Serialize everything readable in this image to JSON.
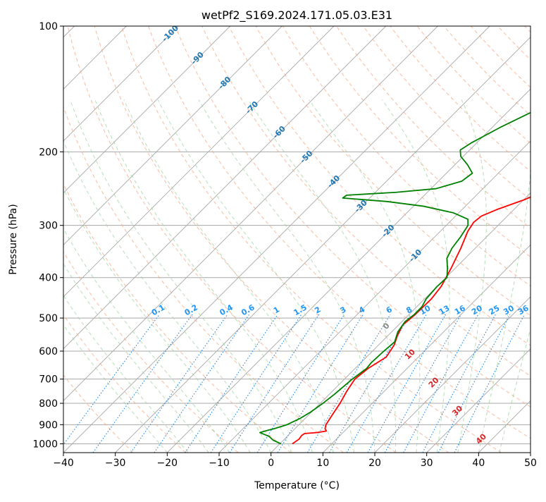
{
  "chart_data": {
    "type": "line",
    "subtype": "skew-t log-p diagram",
    "title": "wetPf2_S169.2024.171.05.03.E31",
    "xlabel": "Temperature (°C)",
    "ylabel": "Pressure (hPa)",
    "xlim": [
      -40,
      50
    ],
    "ylim": [
      1050,
      100
    ],
    "y_scale": "log",
    "x_ticks": [
      -40,
      -30,
      -20,
      -10,
      0,
      10,
      20,
      30,
      40,
      50
    ],
    "y_ticks": [
      1000,
      900,
      800,
      700,
      600,
      500,
      400,
      300,
      200,
      100
    ],
    "grid": true,
    "colors": {
      "temperature": "#ff0000",
      "dewpoint": "#008000",
      "isotherm": "#a8a8a8",
      "dry_adiabat": "#f4a582",
      "moist_adiabat": "#98d098",
      "mixing_ratio": "#1e88e5",
      "mixing_ratio_label": "#2196f3",
      "upper_isotherm_label": "#1f77b4",
      "lower_isotherm_label": "#d62728",
      "zero_label": "#888888"
    },
    "series": [
      {
        "role": "temperature",
        "points": [
          {
            "p": 1000,
            "t": 2.4
          },
          {
            "p": 975,
            "t": 2.8
          },
          {
            "p": 955,
            "t": 2.6
          },
          {
            "p": 945,
            "t": 2.8
          },
          {
            "p": 940,
            "t": 5.0
          },
          {
            "p": 932,
            "t": 6.5
          },
          {
            "p": 920,
            "t": 5.8
          },
          {
            "p": 900,
            "t": 5.2
          },
          {
            "p": 850,
            "t": 4.5
          },
          {
            "p": 800,
            "t": 3.8
          },
          {
            "p": 750,
            "t": 2.8
          },
          {
            "p": 700,
            "t": 2.0
          },
          {
            "p": 660,
            "t": 2.5
          },
          {
            "p": 620,
            "t": 3.8
          },
          {
            "p": 580,
            "t": 3.0
          },
          {
            "p": 550,
            "t": 1.8
          },
          {
            "p": 520,
            "t": 0.8
          },
          {
            "p": 490,
            "t": 1.2
          },
          {
            "p": 450,
            "t": 1.3
          },
          {
            "p": 420,
            "t": 0.8
          },
          {
            "p": 380,
            "t": -0.8
          },
          {
            "p": 340,
            "t": -2.8
          },
          {
            "p": 310,
            "t": -4.7
          },
          {
            "p": 295,
            "t": -5.3
          },
          {
            "p": 285,
            "t": -5.0
          },
          {
            "p": 275,
            "t": -3.3
          },
          {
            "p": 260,
            "t": 0.2
          },
          {
            "p": 240,
            "t": 3.8
          },
          {
            "p": 220,
            "t": 6.3
          },
          {
            "p": 200,
            "t": 8.0
          },
          {
            "p": 180,
            "t": 9.8
          },
          {
            "p": 160,
            "t": 11.5
          },
          {
            "p": 150,
            "t": 12.6
          },
          {
            "p": 140,
            "t": 14.2
          },
          {
            "p": 130,
            "t": 16.0
          },
          {
            "p": 120,
            "t": 18.6
          },
          {
            "p": 110,
            "t": 21.3
          },
          {
            "p": 100,
            "t": 24.3
          }
        ]
      },
      {
        "role": "dewpoint",
        "points": [
          {
            "p": 1000,
            "t": 0.2
          },
          {
            "p": 980,
            "t": -2.0
          },
          {
            "p": 960,
            "t": -3.5
          },
          {
            "p": 940,
            "t": -6.0
          },
          {
            "p": 932,
            "t": -5.3
          },
          {
            "p": 920,
            "t": -4.0
          },
          {
            "p": 900,
            "t": -2.3
          },
          {
            "p": 870,
            "t": -1.0
          },
          {
            "p": 840,
            "t": -0.2
          },
          {
            "p": 800,
            "t": 0.5
          },
          {
            "p": 760,
            "t": 1.0
          },
          {
            "p": 700,
            "t": 1.5
          },
          {
            "p": 660,
            "t": 2.2
          },
          {
            "p": 640,
            "t": 2.0
          },
          {
            "p": 600,
            "t": 2.2
          },
          {
            "p": 570,
            "t": 2.5
          },
          {
            "p": 540,
            "t": 1.2
          },
          {
            "p": 510,
            "t": 0.6
          },
          {
            "p": 490,
            "t": 1.0
          },
          {
            "p": 470,
            "t": 1.0
          },
          {
            "p": 450,
            "t": 0.3
          },
          {
            "p": 420,
            "t": 0.0
          },
          {
            "p": 400,
            "t": 0.2
          },
          {
            "p": 380,
            "t": -1.5
          },
          {
            "p": 360,
            "t": -3.5
          },
          {
            "p": 340,
            "t": -4.5
          },
          {
            "p": 320,
            "t": -5.0
          },
          {
            "p": 300,
            "t": -5.8
          },
          {
            "p": 290,
            "t": -7.0
          },
          {
            "p": 280,
            "t": -11.0
          },
          {
            "p": 270,
            "t": -18.0
          },
          {
            "p": 263,
            "t": -26.0
          },
          {
            "p": 258,
            "t": -35.2
          },
          {
            "p": 254,
            "t": -35.0
          },
          {
            "p": 250,
            "t": -26.0
          },
          {
            "p": 245,
            "t": -19.0
          },
          {
            "p": 235,
            "t": -15.5
          },
          {
            "p": 225,
            "t": -15.0
          },
          {
            "p": 215,
            "t": -17.5
          },
          {
            "p": 205,
            "t": -20.5
          },
          {
            "p": 198,
            "t": -21.8
          },
          {
            "p": 190,
            "t": -21.0
          },
          {
            "p": 175,
            "t": -18.5
          },
          {
            "p": 160,
            "t": -15.2
          },
          {
            "p": 145,
            "t": -12.0
          },
          {
            "p": 130,
            "t": -8.5
          },
          {
            "p": 115,
            "t": -4.0
          },
          {
            "p": 100,
            "t": 1.0
          }
        ]
      }
    ],
    "upper_isotherm_labels": [
      "-100",
      "-90",
      "-80",
      "-70",
      "-60",
      "-50",
      "-40",
      "-30",
      "-20",
      "-10"
    ],
    "mixing_ratio_labels": [
      "0.1",
      "0.2",
      "0.4",
      "0.6",
      "1",
      "1.5",
      "2",
      "3",
      "4",
      "6",
      "8",
      "10",
      "13",
      "16",
      "20",
      "25",
      "30",
      "36"
    ],
    "lower_isotherm_labels": [
      "0",
      "10",
      "20",
      "30",
      "40"
    ]
  }
}
